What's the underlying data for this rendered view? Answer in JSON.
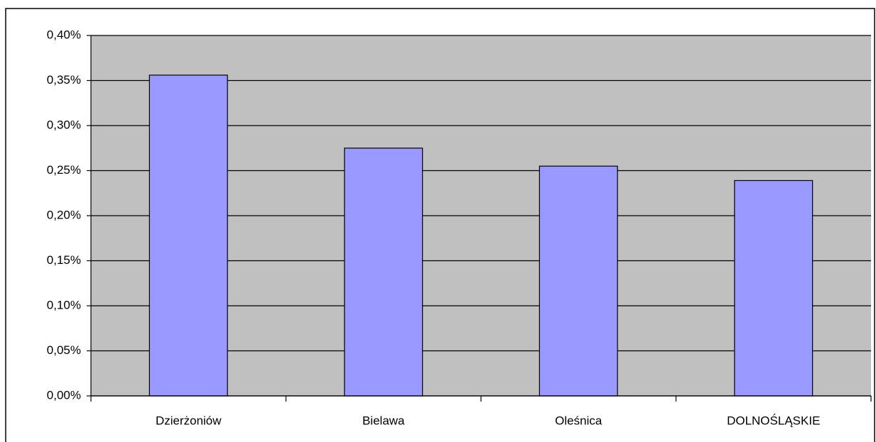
{
  "chart_data": {
    "type": "bar",
    "categories": [
      "Dzierżoniów",
      "Bielawa",
      "Oleśnica",
      "DOLNOŚLĄSKIE"
    ],
    "values": [
      0.356,
      0.275,
      0.255,
      0.239
    ],
    "color": "#9999ff",
    "ylim": [
      0,
      0.4
    ],
    "yticks": [
      {
        "value": 0,
        "label": "0,00%"
      },
      {
        "value": 0.05,
        "label": "0,05%"
      },
      {
        "value": 0.1,
        "label": "0,10%"
      },
      {
        "value": 0.15,
        "label": "0,15%"
      },
      {
        "value": 0.2,
        "label": "0,20%"
      },
      {
        "value": 0.25,
        "label": "0,25%"
      },
      {
        "value": 0.3,
        "label": "0,30%"
      },
      {
        "value": 0.35,
        "label": "0,35%"
      },
      {
        "value": 0.4,
        "label": "0,40%"
      }
    ],
    "grid": true
  }
}
